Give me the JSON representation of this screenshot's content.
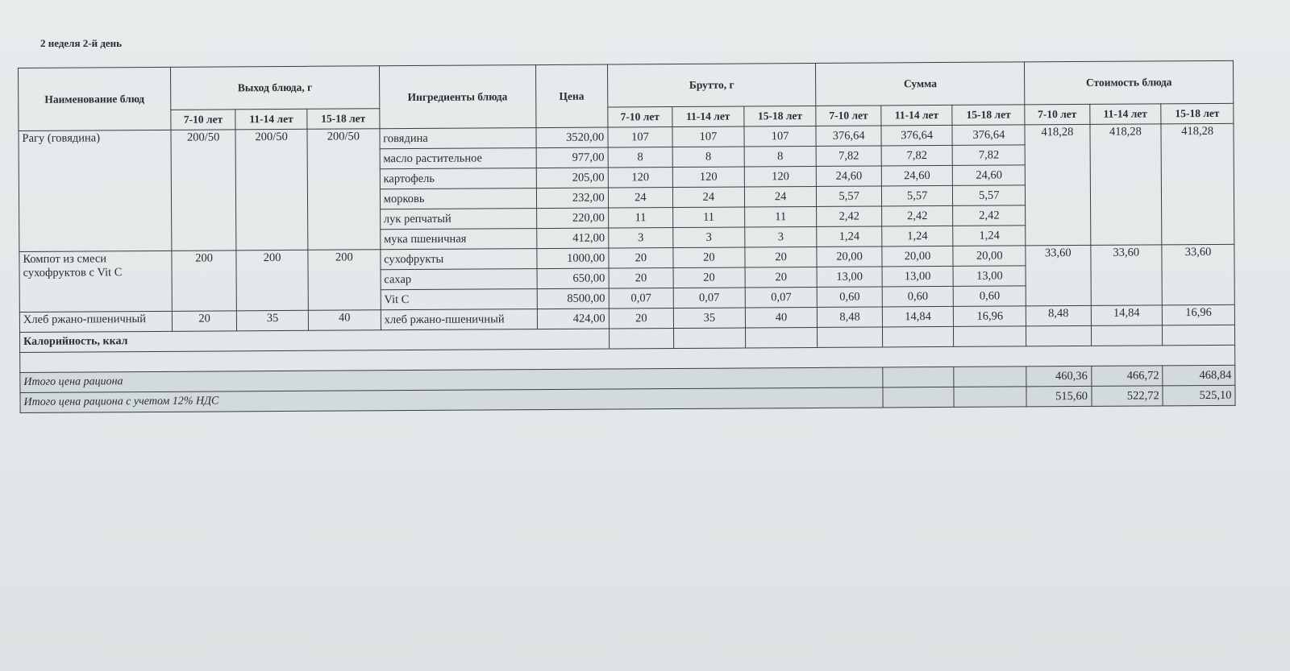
{
  "title": "2 неделя 2-й день",
  "headers": {
    "name": "Наименование блюд",
    "output": "Выход блюда, г",
    "ingredients": "Ингредиенты блюда",
    "price": "Цена",
    "brutto": "Брутто, г",
    "sum": "Сумма",
    "cost": "Стоимость блюда",
    "ages": [
      "7-10 лет",
      "11-14 лет",
      "15-18 лет"
    ]
  },
  "dishes": [
    {
      "name": "Рагу (говядина)",
      "output": [
        "200/50",
        "200/50",
        "200/50"
      ],
      "cost": [
        "418,28",
        "418,28",
        "418,28"
      ],
      "ingredients": [
        {
          "name": "говядина",
          "price": "3520,00",
          "brutto": [
            "107",
            "107",
            "107"
          ],
          "sum": [
            "376,64",
            "376,64",
            "376,64"
          ]
        },
        {
          "name": "масло растительное",
          "price": "977,00",
          "brutto": [
            "8",
            "8",
            "8"
          ],
          "sum": [
            "7,82",
            "7,82",
            "7,82"
          ]
        },
        {
          "name": "картофель",
          "price": "205,00",
          "brutto": [
            "120",
            "120",
            "120"
          ],
          "sum": [
            "24,60",
            "24,60",
            "24,60"
          ]
        },
        {
          "name": "морковь",
          "price": "232,00",
          "brutto": [
            "24",
            "24",
            "24"
          ],
          "sum": [
            "5,57",
            "5,57",
            "5,57"
          ]
        },
        {
          "name": "лук репчатый",
          "price": "220,00",
          "brutto": [
            "11",
            "11",
            "11"
          ],
          "sum": [
            "2,42",
            "2,42",
            "2,42"
          ]
        },
        {
          "name": "мука пшеничная",
          "price": "412,00",
          "brutto": [
            "3",
            "3",
            "3"
          ],
          "sum": [
            "1,24",
            "1,24",
            "1,24"
          ]
        }
      ]
    },
    {
      "name": "Компот из смеси сухофруктов с Vit C",
      "output": [
        "200",
        "200",
        "200"
      ],
      "cost": [
        "33,60",
        "33,60",
        "33,60"
      ],
      "ingredients": [
        {
          "name": "сухофрукты",
          "price": "1000,00",
          "brutto": [
            "20",
            "20",
            "20"
          ],
          "sum": [
            "20,00",
            "20,00",
            "20,00"
          ]
        },
        {
          "name": "сахар",
          "price": "650,00",
          "brutto": [
            "20",
            "20",
            "20"
          ],
          "sum": [
            "13,00",
            "13,00",
            "13,00"
          ]
        },
        {
          "name": "Vit C",
          "price": "8500,00",
          "brutto": [
            "0,07",
            "0,07",
            "0,07"
          ],
          "sum": [
            "0,60",
            "0,60",
            "0,60"
          ]
        }
      ]
    },
    {
      "name": "Хлеб ржано-пшеничный",
      "output": [
        "20",
        "35",
        "40"
      ],
      "cost": [
        "8,48",
        "14,84",
        "16,96"
      ],
      "ingredients": [
        {
          "name": "хлеб ржано-пшеничный",
          "price": "424,00",
          "brutto": [
            "20",
            "35",
            "40"
          ],
          "sum": [
            "8,48",
            "14,84",
            "16,96"
          ]
        }
      ]
    }
  ],
  "calories_label": "Калорийность, ккал",
  "totals": [
    {
      "label": "Итого цена рациона",
      "values": [
        "460,36",
        "466,72",
        "468,84"
      ]
    },
    {
      "label": "Итого цена рациона с учетом 12% НДС",
      "values": [
        "515,60",
        "522,72",
        "525,10"
      ]
    }
  ]
}
